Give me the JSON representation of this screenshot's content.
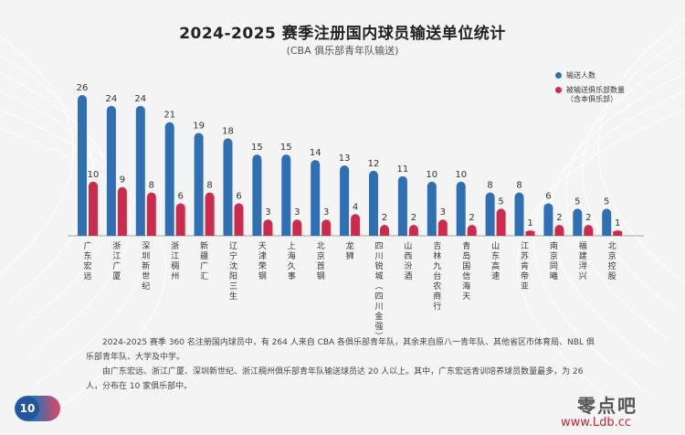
{
  "page": {
    "page_number": "10",
    "watermark": "零点吧",
    "watermark_url": "www.Ldb.cc"
  },
  "notes": [
    "2024-2025 赛季 360 名注册国内球员中，有 264 人来自 CBA 各俱乐部青年队，其余来自原八一青年队、其他省区市体育局、NBL 俱乐部青年队、大学及中学。",
    "由广东宏远、浙江广厦、深圳新世纪、浙江稠州俱乐部青年队输送球员达 20 人以上。其中，广东宏远青训培养球员数量最多，为 26 人，分布在 10 家俱乐部中。"
  ],
  "chart_data": {
    "type": "bar",
    "title": "2024-2025 赛季注册国内球员输送单位统计",
    "subtitle": "(CBA 俱乐部青年队输送)",
    "categories": [
      "广东宏远",
      "浙江广厦",
      "深圳新世纪",
      "浙江稠州",
      "新疆广汇",
      "辽宁沈阳三生",
      "天津荣钢",
      "上海久事",
      "北京首钢",
      "龙狮",
      "四川锐城（四川金强）",
      "山西汾酒",
      "吉林九台农商行",
      "青岛国信海天",
      "山东高速",
      "江苏肯帝亚",
      "南京同曦",
      "福建浔兴",
      "北京控股"
    ],
    "series": [
      {
        "name": "输送人数",
        "color": "#2f6fb3",
        "values": [
          26,
          24,
          24,
          21,
          19,
          18,
          15,
          15,
          14,
          13,
          12,
          11,
          10,
          10,
          8,
          8,
          6,
          5,
          5
        ]
      },
      {
        "name": "被输送俱乐部数量",
        "name_sub": "（含本俱乐部）",
        "color": "#cc2b4c",
        "values": [
          10,
          9,
          8,
          6,
          8,
          6,
          3,
          3,
          3,
          4,
          2,
          2,
          3,
          2,
          5,
          1,
          2,
          2,
          1
        ]
      }
    ],
    "ylim": [
      0,
      26
    ],
    "grid": false,
    "legend_position": "top-right"
  }
}
